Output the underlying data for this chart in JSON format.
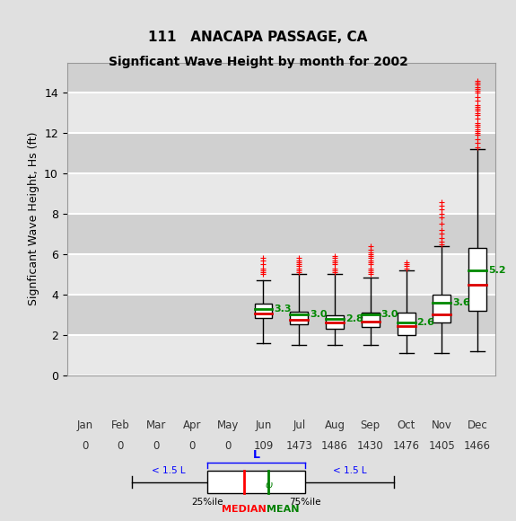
{
  "title_line1": "111   ANACAPA PASSAGE, CA",
  "title_line2": "Signficant Wave Height by month for 2002",
  "ylabel": "Signficant Wave Height, Hs (ft)",
  "months": [
    "Jan",
    "Feb",
    "Mar",
    "Apr",
    "May",
    "Jun",
    "Jul",
    "Aug",
    "Sep",
    "Oct",
    "Nov",
    "Dec"
  ],
  "counts": [
    "0",
    "0",
    "0",
    "0",
    "0",
    "109",
    "1473",
    "1486",
    "1430",
    "1476",
    "1405",
    "1466"
  ],
  "ylim": [
    0,
    15.5
  ],
  "yticks": [
    0,
    2,
    4,
    6,
    8,
    10,
    12,
    14
  ],
  "box_data": {
    "Jun": {
      "q1": 2.85,
      "median": 3.05,
      "q3": 3.55,
      "mean": 3.3,
      "whislo": 1.6,
      "whishi": 4.7,
      "fliers_high": [
        5.0,
        5.1,
        5.2,
        5.3,
        5.5,
        5.7,
        5.8
      ]
    },
    "Jul": {
      "q1": 2.5,
      "median": 2.75,
      "q3": 3.15,
      "mean": 3.0,
      "whislo": 1.5,
      "whishi": 5.0,
      "fliers_high": [
        5.1,
        5.2,
        5.3,
        5.4,
        5.5,
        5.6,
        5.7,
        5.8
      ]
    },
    "Aug": {
      "q1": 2.3,
      "median": 2.6,
      "q3": 2.95,
      "mean": 2.8,
      "whislo": 1.5,
      "whishi": 5.0,
      "fliers_high": [
        5.1,
        5.2,
        5.3,
        5.5,
        5.6,
        5.7,
        5.8,
        5.9
      ]
    },
    "Sep": {
      "q1": 2.4,
      "median": 2.65,
      "q3": 3.1,
      "mean": 3.0,
      "whislo": 1.5,
      "whishi": 4.85,
      "fliers_high": [
        5.0,
        5.1,
        5.2,
        5.3,
        5.5,
        5.6,
        5.7,
        5.8,
        5.9,
        6.0,
        6.1,
        6.2,
        6.4
      ]
    },
    "Oct": {
      "q1": 2.0,
      "median": 2.45,
      "q3": 3.1,
      "mean": 2.6,
      "whislo": 1.1,
      "whishi": 5.2,
      "fliers_high": [
        5.3,
        5.4,
        5.5,
        5.6
      ]
    },
    "Nov": {
      "q1": 2.6,
      "median": 3.0,
      "q3": 4.0,
      "mean": 3.6,
      "whislo": 1.1,
      "whishi": 6.4,
      "fliers_high": [
        6.5,
        6.6,
        6.8,
        7.0,
        7.2,
        7.5,
        7.8,
        8.0,
        8.2,
        8.4,
        8.6
      ]
    },
    "Dec": {
      "q1": 3.2,
      "median": 4.5,
      "q3": 6.3,
      "mean": 5.2,
      "whislo": 1.2,
      "whishi": 11.2,
      "fliers_high": [
        11.3,
        11.5,
        11.7,
        11.9,
        12.0,
        12.1,
        12.2,
        12.3,
        12.4,
        12.5,
        12.7,
        12.9,
        13.0,
        13.1,
        13.2,
        13.3,
        13.4,
        13.6,
        13.8,
        14.0,
        14.1,
        14.2,
        14.3,
        14.4,
        14.5,
        14.6
      ]
    }
  },
  "active_months": [
    "Jun",
    "Jul",
    "Aug",
    "Sep",
    "Oct",
    "Nov",
    "Dec"
  ],
  "active_positions": [
    6,
    7,
    8,
    9,
    10,
    11,
    12
  ],
  "bg_color": "#e0e0e0",
  "plot_bg": "#d8d8d8",
  "band_light": "#e8e8e8",
  "band_dark": "#d0d0d0",
  "grid_color": "#ffffff",
  "box_color": "#ffffff",
  "median_color": "#dd0000",
  "mean_color": "#008800",
  "whisker_color": "#000000",
  "flier_color": "#ff0000",
  "boxwidth": 0.5
}
